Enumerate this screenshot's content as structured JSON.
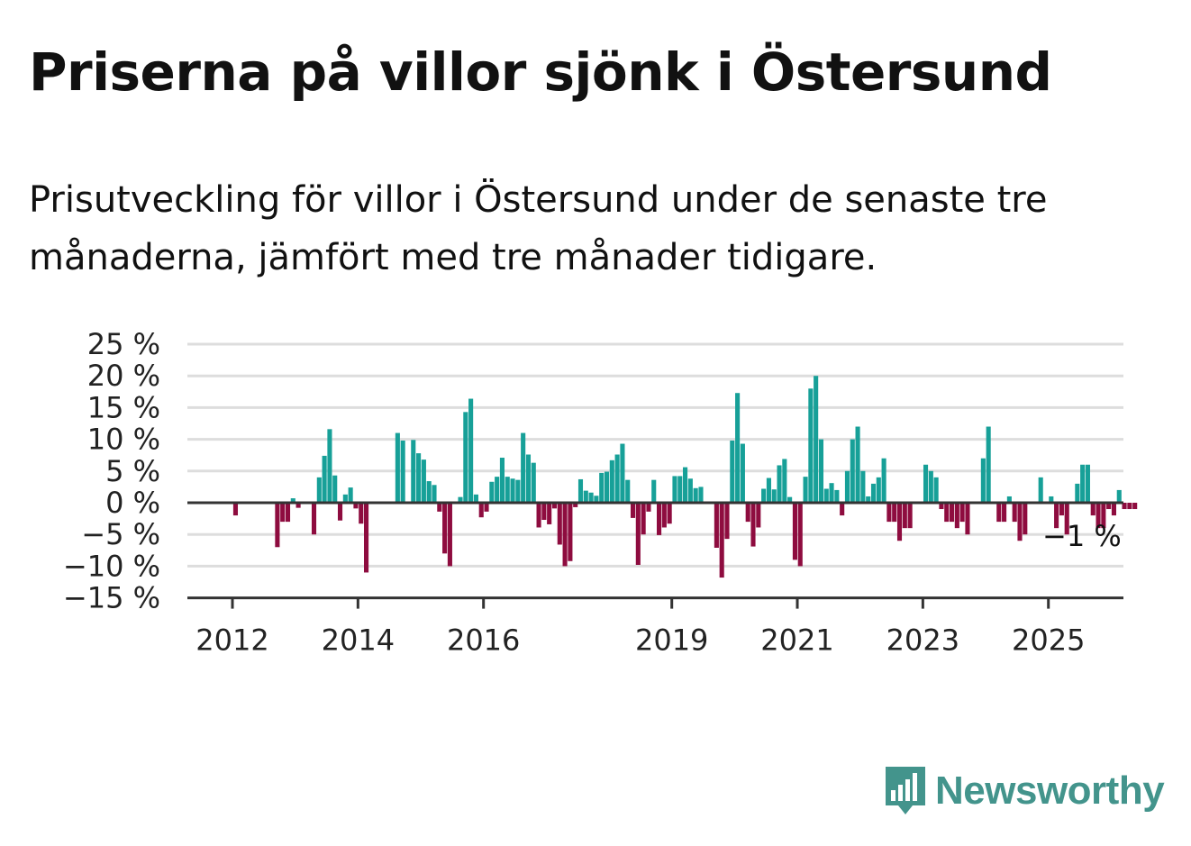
{
  "header": {
    "title": "Priserna på villor sjönk i Östersund",
    "subtitle": "Prisutveckling för villor i Östersund under de senaste tre månaderna, jämfört med tre månader tidigare."
  },
  "logo": {
    "text": "Newsworthy",
    "icon": "newsworthy-chart-icon",
    "color": "#43948c"
  },
  "chart_data": {
    "type": "bar",
    "title": "",
    "xlabel": "",
    "ylabel": "",
    "ylim": [
      -15,
      25
    ],
    "yticks": [
      25,
      20,
      15,
      10,
      5,
      0,
      -5,
      -10,
      -15
    ],
    "ytick_labels": [
      "25 %",
      "20 %",
      "15 %",
      "10 %",
      "5 %",
      "0 %",
      "−5 %",
      "−10 %",
      "−15 %"
    ],
    "xticks": [
      2012,
      2014,
      2016,
      2019,
      2021,
      2023,
      2025
    ],
    "grid": true,
    "positive_color": "#17a098",
    "negative_color": "#8e0c3f",
    "x_start": 2011.3,
    "x_step": 0.0833,
    "end_label": "−1 %",
    "values": [
      0,
      0,
      0,
      0,
      0,
      0,
      0,
      0,
      0,
      -2,
      0,
      0,
      0,
      0,
      0,
      0,
      0,
      -7,
      -3,
      -3,
      0.7,
      -0.8,
      0,
      0,
      -5,
      4,
      7.4,
      11.6,
      4.3,
      -2.8,
      1.3,
      2.4,
      -0.9,
      -3.3,
      -11,
      0,
      0,
      0,
      0,
      0,
      11,
      9.8,
      0,
      9.9,
      7.8,
      6.8,
      3.4,
      2.8,
      -1.4,
      -8,
      -10,
      0,
      0.9,
      14.3,
      16.4,
      1.3,
      -2.3,
      -1.4,
      3.3,
      4.1,
      7.1,
      4.1,
      3.8,
      3.6,
      11,
      7.6,
      6.3,
      -3.9,
      -2.7,
      -3.4,
      -0.9,
      -6.6,
      -10,
      -9.2,
      -0.7,
      3.7,
      1.9,
      1.6,
      1.1,
      4.7,
      4.9,
      6.7,
      7.6,
      9.3,
      3.6,
      -2.4,
      -9.8,
      -5,
      -1.4,
      3.6,
      -5.1,
      -3.9,
      -3.3,
      4.2,
      4.2,
      5.6,
      3.8,
      2.3,
      2.5,
      0,
      0,
      -7.1,
      -11.8,
      -5.7,
      9.8,
      17.3,
      9.3,
      -3,
      -6.9,
      -3.9,
      2.2,
      3.9,
      2.1,
      5.9,
      6.9,
      0.9,
      -9,
      -10,
      4.1,
      18,
      20,
      10,
      2.2,
      3.1,
      2,
      -2,
      5,
      10,
      12,
      5,
      1,
      3,
      4,
      7,
      -3,
      -3,
      -6,
      -4,
      -4,
      0,
      0,
      6,
      5,
      4,
      -1,
      -3,
      -3,
      -4,
      -3,
      -5,
      0,
      0,
      7,
      12,
      0,
      -3,
      -3,
      1,
      -3,
      -6,
      -5,
      0,
      0,
      4,
      0,
      1,
      -4,
      -2,
      -5,
      0,
      3,
      6,
      6,
      -2,
      -4,
      -4,
      -1,
      -2,
      2,
      -1,
      -1,
      -1
    ]
  }
}
